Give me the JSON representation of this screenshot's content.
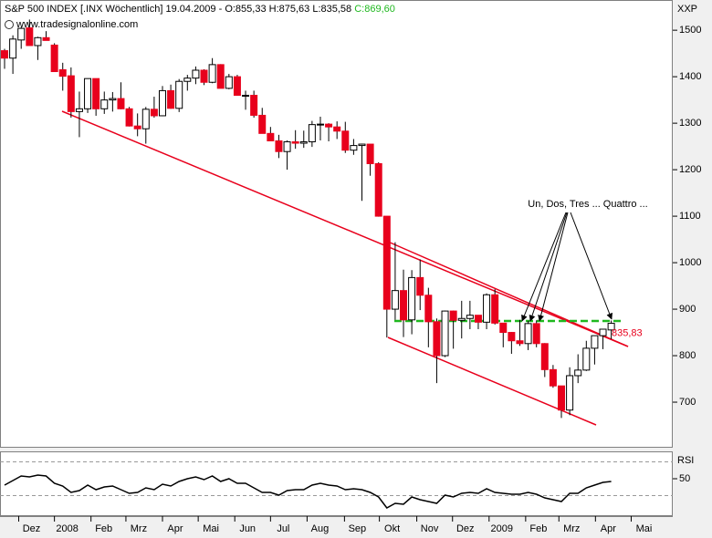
{
  "chart_data": [
    {
      "type": "candlestick",
      "title": "S&P 500 INDEX [.INX  Wöchentlich] 19.04.2009 - O:855,33 H:875,63 L:835,58",
      "title_close": "C:869,60",
      "watermark": "www.tradesignalonline.com",
      "y_label": "XXP",
      "annotation": "Un, Dos, Tres ... Quattro ...",
      "price_marker": {
        "value": 835.83,
        "label": "835,83"
      },
      "up_color": "#ffffff",
      "down_color": "#e8001c",
      "xlim": [
        -0.55,
        80.4
      ],
      "ylim": [
        602,
        1565
      ],
      "yticks": [
        700,
        800,
        900,
        1000,
        1100,
        1200,
        1300,
        1400,
        1500
      ],
      "open": [
        1456,
        1440,
        1479,
        1505,
        1467,
        1484,
        1468,
        1415,
        1402,
        1325,
        1331,
        1396,
        1331,
        1350,
        1353,
        1331,
        1294,
        1288,
        1330,
        1316,
        1370,
        1332,
        1390,
        1397,
        1414,
        1388,
        1426,
        1375,
        1400,
        1360,
        1360,
        1317,
        1278,
        1262,
        1239,
        1260,
        1257,
        1260,
        1297,
        1298,
        1292,
        1283,
        1242,
        1252,
        1255,
        1213,
        1100,
        900,
        940,
        877,
        968,
        930,
        873,
        800,
        896,
        876,
        880,
        887,
        872,
        931,
        870,
        850,
        832,
        826,
        869,
        826,
        770,
        735,
        683,
        757,
        769,
        816,
        843,
        855.33
      ],
      "high": [
        1460,
        1489,
        1507,
        1523,
        1486,
        1498,
        1472,
        1430,
        1420,
        1368,
        1396,
        1396,
        1368,
        1367,
        1388,
        1335,
        1321,
        1335,
        1357,
        1380,
        1383,
        1395,
        1404,
        1422,
        1416,
        1440,
        1427,
        1406,
        1404,
        1370,
        1370,
        1333,
        1292,
        1275,
        1263,
        1285,
        1284,
        1305,
        1314,
        1300,
        1304,
        1303,
        1266,
        1256,
        1255,
        1216,
        1100,
        1044,
        985,
        984,
        1007,
        946,
        880,
        897,
        897,
        918,
        918,
        887,
        934,
        943,
        870,
        851,
        877,
        875,
        876,
        827,
        780,
        735,
        775,
        803,
        832,
        843,
        857,
        875.63
      ],
      "low": [
        1417,
        1406,
        1460,
        1468,
        1436,
        1478,
        1411,
        1370,
        1312,
        1270,
        1322,
        1316,
        1320,
        1325,
        1330,
        1293,
        1272,
        1256,
        1312,
        1315,
        1331,
        1324,
        1370,
        1384,
        1382,
        1386,
        1375,
        1373,
        1359,
        1329,
        1312,
        1278,
        1262,
        1225,
        1200,
        1245,
        1247,
        1249,
        1263,
        1261,
        1266,
        1236,
        1232,
        1133,
        1187,
        1099,
        839,
        877,
        840,
        846,
        898,
        818,
        741,
        797,
        815,
        837,
        857,
        857,
        857,
        867,
        818,
        804,
        821,
        812,
        818,
        754,
        731,
        666,
        672,
        741,
        767,
        781,
        814,
        835.58
      ],
      "close": [
        1440,
        1481,
        1504,
        1467,
        1484,
        1478,
        1411,
        1401,
        1325,
        1331,
        1396,
        1331,
        1350,
        1353,
        1331,
        1294,
        1288,
        1330,
        1316,
        1370,
        1332,
        1390,
        1397,
        1414,
        1388,
        1426,
        1375,
        1400,
        1360,
        1360,
        1317,
        1278,
        1262,
        1239,
        1260,
        1257,
        1260,
        1297,
        1298,
        1292,
        1283,
        1242,
        1252,
        1255,
        1213,
        1100,
        900,
        940,
        877,
        968,
        930,
        873,
        800,
        896,
        876,
        880,
        887,
        872,
        931,
        870,
        850,
        832,
        826,
        869,
        826,
        770,
        735,
        683,
        757,
        769,
        816,
        843,
        857,
        869.6
      ]
    },
    {
      "type": "line",
      "title": "RSI",
      "color": "#000000",
      "xlim": [
        -0.55,
        80.4
      ],
      "ylim": [
        5.7,
        82.4
      ],
      "yticks": [
        50
      ],
      "levels": [
        30,
        70
      ],
      "xticks": [
        {
          "value": 1.7,
          "label": "Dez"
        },
        {
          "value": 6.0,
          "label": "2008"
        },
        {
          "value": 10.4,
          "label": "Feb"
        },
        {
          "value": 14.6,
          "label": "Mrz"
        },
        {
          "value": 19.0,
          "label": "Apr"
        },
        {
          "value": 23.3,
          "label": "Mai"
        },
        {
          "value": 27.7,
          "label": "Jun"
        },
        {
          "value": 32.0,
          "label": "Jul"
        },
        {
          "value": 36.4,
          "label": "Aug"
        },
        {
          "value": 40.9,
          "label": "Sep"
        },
        {
          "value": 45.1,
          "label": "Okt"
        },
        {
          "value": 49.6,
          "label": "Nov"
        },
        {
          "value": 53.9,
          "label": "Dez"
        },
        {
          "value": 58.3,
          "label": "2009"
        },
        {
          "value": 62.7,
          "label": "Feb"
        },
        {
          "value": 66.7,
          "label": "Mrz"
        },
        {
          "value": 71.1,
          "label": "Apr"
        },
        {
          "value": 75.4,
          "label": "Mai"
        }
      ],
      "values": [
        42.4,
        47.8,
        53.2,
        52.2,
        54.3,
        53.2,
        44.6,
        41.4,
        33.8,
        35.9,
        42.4,
        37.0,
        40.3,
        41.4,
        37.0,
        32.7,
        33.8,
        39.2,
        37.0,
        43.5,
        41.4,
        46.8,
        50,
        52.2,
        48.9,
        53.2,
        46.8,
        50,
        44.6,
        44.6,
        39.2,
        33.8,
        33.8,
        30.5,
        35.9,
        37.0,
        37.0,
        42.4,
        44.6,
        42.4,
        41.4,
        37.0,
        38.1,
        37.0,
        33.8,
        28.4,
        15.4,
        20.8,
        19.7,
        28.4,
        25.1,
        23.0,
        20.8,
        30.5,
        28.4,
        32.7,
        33.8,
        32.7,
        38.1,
        33.8,
        32.7,
        31.6,
        31.6,
        33.8,
        31.6,
        27.3,
        25.1,
        23.0,
        32.7,
        32.7,
        39.2,
        42.4,
        45.7,
        46.8
      ]
    }
  ]
}
